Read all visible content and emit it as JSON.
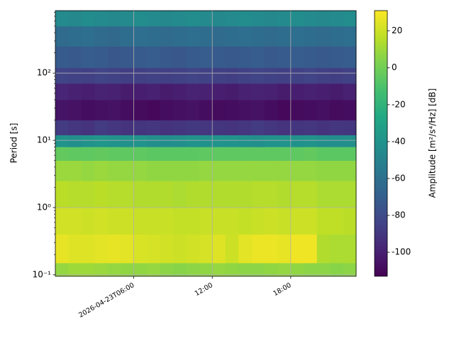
{
  "chart_data": {
    "type": "heatmap",
    "ylabel": "Period [s]",
    "colorbar_label": "Amplitude [m²/s⁴/Hz] [dB]",
    "x_bins": [
      0,
      1,
      2,
      3,
      4,
      5,
      6,
      7,
      8,
      9,
      10,
      11,
      12,
      13,
      14,
      15,
      16,
      17,
      18,
      19,
      20,
      21,
      22,
      23
    ],
    "y_bins": [
      0.095,
      0.15,
      0.4,
      1,
      2.5,
      5,
      8,
      12,
      20,
      40,
      70,
      120,
      250,
      500,
      850
    ],
    "values": [
      [
        8,
        10,
        10,
        9,
        8,
        7,
        7,
        8,
        6,
        5,
        6,
        7,
        8,
        7,
        6,
        6,
        7,
        8,
        7,
        6,
        6,
        5,
        6
      ],
      [
        26,
        24,
        24,
        25,
        26,
        25,
        23,
        22,
        21,
        20,
        21,
        22,
        24,
        20,
        25,
        27,
        27,
        26,
        28,
        28,
        14,
        13,
        13
      ],
      [
        21,
        21,
        20,
        21,
        20,
        20,
        19,
        19,
        19,
        18,
        18,
        19,
        19,
        19,
        18,
        19,
        20,
        19,
        20,
        20,
        17,
        17,
        16
      ],
      [
        16,
        15,
        15,
        16,
        15,
        15,
        14,
        14,
        14,
        13,
        14,
        14,
        14,
        14,
        14,
        15,
        15,
        14,
        15,
        15,
        13,
        13,
        13
      ],
      [
        9,
        9,
        8,
        9,
        8,
        8,
        8,
        7,
        7,
        7,
        7,
        8,
        8,
        8,
        8,
        8,
        8,
        8,
        8,
        8,
        7,
        7,
        7
      ],
      [
        -4,
        -5,
        -5,
        -4,
        -5,
        -5,
        -5,
        -6,
        -6,
        -6,
        -6,
        -5,
        -5,
        -5,
        -5,
        -5,
        -5,
        -5,
        -5,
        -4,
        -6,
        -6,
        -6
      ],
      [
        -40,
        -42,
        -40,
        -38,
        -40,
        -41,
        -40,
        -42,
        -43,
        -42,
        -40,
        -41,
        -40,
        -40,
        -41,
        -42,
        -40,
        -40,
        -41,
        -40,
        -42,
        -43,
        -42
      ],
      [
        -88,
        -90,
        -92,
        -88,
        -90,
        -92,
        -91,
        -90,
        -92,
        -91,
        -89,
        -90,
        -91,
        -92,
        -90,
        -88,
        -90,
        -92,
        -91,
        -90,
        -92,
        -90,
        -91
      ],
      [
        -105,
        -106,
        -108,
        -107,
        -106,
        -108,
        -109,
        -110,
        -108,
        -107,
        -106,
        -108,
        -109,
        -108,
        -107,
        -106,
        -108,
        -110,
        -109,
        -108,
        -107,
        -109,
        -108
      ],
      [
        -98,
        -100,
        -101,
        -99,
        -100,
        -102,
        -101,
        -100,
        -102,
        -101,
        -99,
        -100,
        -101,
        -102,
        -100,
        -99,
        -100,
        -102,
        -101,
        -100,
        -101,
        -102,
        -100
      ],
      [
        -84,
        -85,
        -86,
        -84,
        -85,
        -87,
        -86,
        -85,
        -86,
        -85,
        -84,
        -85,
        -86,
        -87,
        -85,
        -84,
        -85,
        -86,
        -85,
        -84,
        -86,
        -87,
        -85
      ],
      [
        -72,
        -73,
        -71,
        -72,
        -74,
        -73,
        -72,
        -71,
        -73,
        -74,
        -72,
        -71,
        -72,
        -73,
        -72,
        -71,
        -73,
        -72,
        -71,
        -72,
        -73,
        -72,
        -71
      ],
      [
        -63,
        -62,
        -61,
        -63,
        -64,
        -62,
        -61,
        -62,
        -63,
        -62,
        -61,
        -62,
        -63,
        -62,
        -61,
        -62,
        -63,
        -62,
        -61,
        -62,
        -63,
        -62,
        -61
      ],
      [
        -45,
        -46,
        -44,
        -45,
        -46,
        -45,
        -44,
        -45,
        -46,
        -45,
        -44,
        -45,
        -46,
        -45,
        -44,
        -45,
        -46,
        -45,
        -44,
        -45,
        -46,
        -45,
        -44
      ]
    ],
    "xlim": [
      0,
      23
    ],
    "xticks": [
      {
        "value": 6,
        "label": "2026-04-23T06:00"
      },
      {
        "value": 12,
        "label": "12:00"
      },
      {
        "value": 18,
        "label": "18:00"
      }
    ],
    "ylim": [
      0.095,
      850
    ],
    "yscale": "log",
    "yticks": [
      {
        "value": 0.1,
        "label": "10⁻¹"
      },
      {
        "value": 1,
        "label": "10⁰"
      },
      {
        "value": 10,
        "label": "10¹"
      },
      {
        "value": 100,
        "label": "10²"
      }
    ],
    "clim": [
      -113,
      31
    ],
    "cticks": [
      -100,
      -80,
      -60,
      -40,
      -20,
      0,
      20
    ],
    "colormap": "viridis",
    "grid": true
  }
}
